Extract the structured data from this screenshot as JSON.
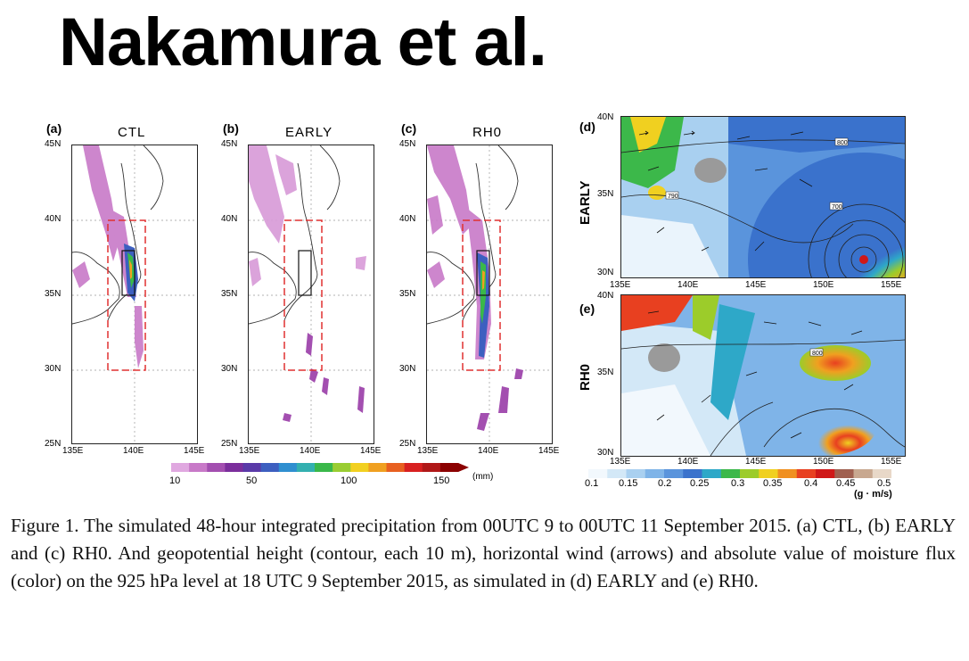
{
  "slide": {
    "title": "Nakamura et al."
  },
  "precip_panels": [
    {
      "label": "(a)",
      "title": "CTL"
    },
    {
      "label": "(b)",
      "title": "EARLY"
    },
    {
      "label": "(c)",
      "title": "RH0"
    }
  ],
  "precip_axes": {
    "lat_ticks": [
      "45N",
      "40N",
      "35N",
      "30N",
      "25N"
    ],
    "lon_ticks": [
      "135E",
      "140E",
      "145E"
    ]
  },
  "precip_colorbar": {
    "labels": [
      "10",
      "50",
      "100",
      "150"
    ],
    "unit": "(mm)",
    "colors": [
      "#e0a8e0",
      "#c879c8",
      "#a34fb0",
      "#7b2e9c",
      "#5a3aa8",
      "#3d5fc0",
      "#2f8fd0",
      "#33b0b0",
      "#3ab84a",
      "#9acd32",
      "#f2d020",
      "#f0a020",
      "#e86020",
      "#d82020",
      "#b01818",
      "#8b0000"
    ]
  },
  "flux_panels": [
    {
      "label": "(d)",
      "side_label": "EARLY",
      "lat_ticks": [
        "40N",
        "35N",
        "30N"
      ],
      "contour_labels": [
        "800",
        "790",
        "700"
      ]
    },
    {
      "label": "(e)",
      "side_label": "RH0",
      "lat_ticks": [
        "40N",
        "35N",
        "30N"
      ],
      "contour_labels": [
        "800"
      ]
    }
  ],
  "flux_axes": {
    "lon_ticks": [
      "135E",
      "140E",
      "145E",
      "150E",
      "155E"
    ]
  },
  "flux_colorbar": {
    "labels": [
      "0.1",
      "0.15",
      "0.2",
      "0.25",
      "0.3",
      "0.35",
      "0.4",
      "0.45",
      "0.5"
    ],
    "unit": "(g · m/s)",
    "colors": [
      "#f2f8fd",
      "#d3e8f7",
      "#a9d0f0",
      "#7fb4e8",
      "#5a94dc",
      "#3a72cc",
      "#2ea8c8",
      "#3cb84a",
      "#9ccc2a",
      "#f0d020",
      "#f09020",
      "#e84020",
      "#d01818",
      "#a06050",
      "#c8a890",
      "#e8d8c8"
    ]
  },
  "caption": {
    "text": "Figure 1. The simulated 48-hour integrated precipitation from 00UTC 9 to 00UTC 11 September 2015. (a) CTL, (b) EARLY and (c) RH0. And geopotential height (contour, each 10 m), horizontal wind (arrows) and absolute value of moisture flux (color) on the 925 hPa level at 18 UTC 9 September 2015, as simulated in (d) EARLY and (e) RH0."
  }
}
